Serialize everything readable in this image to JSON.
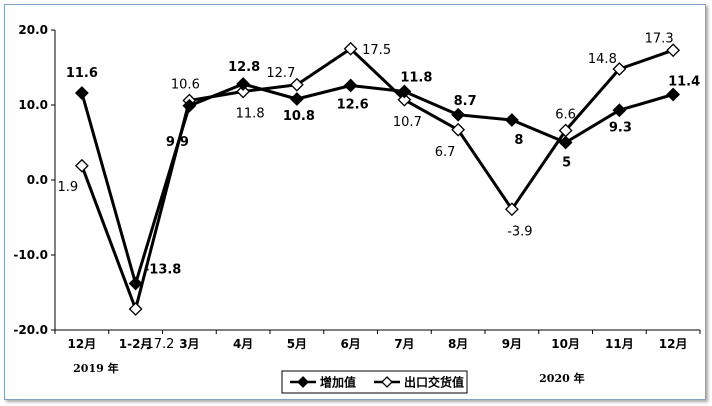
{
  "chart_data": {
    "type": "line",
    "categories": [
      "12月",
      "1-2月",
      "3月",
      "4月",
      "5月",
      "6月",
      "7月",
      "8月",
      "9月",
      "10月",
      "11月",
      "12月"
    ],
    "category_groups": [
      "2019 年",
      "2020 年"
    ],
    "ylim": [
      -20,
      20
    ],
    "yticks": [
      "20.0",
      "10.0",
      "0.0",
      "-10.0",
      "-20.0"
    ],
    "ytick_values": [
      20,
      10,
      0,
      -10,
      -20
    ],
    "grid": false,
    "legend_position": "bottom-center",
    "series": [
      {
        "name": "增加值",
        "color": "#000000",
        "marker": "filled-diamond",
        "values": [
          11.6,
          -13.8,
          9.9,
          12.8,
          10.8,
          12.6,
          11.8,
          8.7,
          8.0,
          5.0,
          9.3,
          11.4
        ]
      },
      {
        "name": "出口交货值",
        "color": "#000000",
        "marker": "hollow-diamond",
        "values": [
          1.9,
          -17.2,
          10.6,
          11.8,
          12.7,
          17.5,
          10.7,
          6.7,
          -3.9,
          6.6,
          14.8,
          17.3
        ]
      }
    ]
  }
}
